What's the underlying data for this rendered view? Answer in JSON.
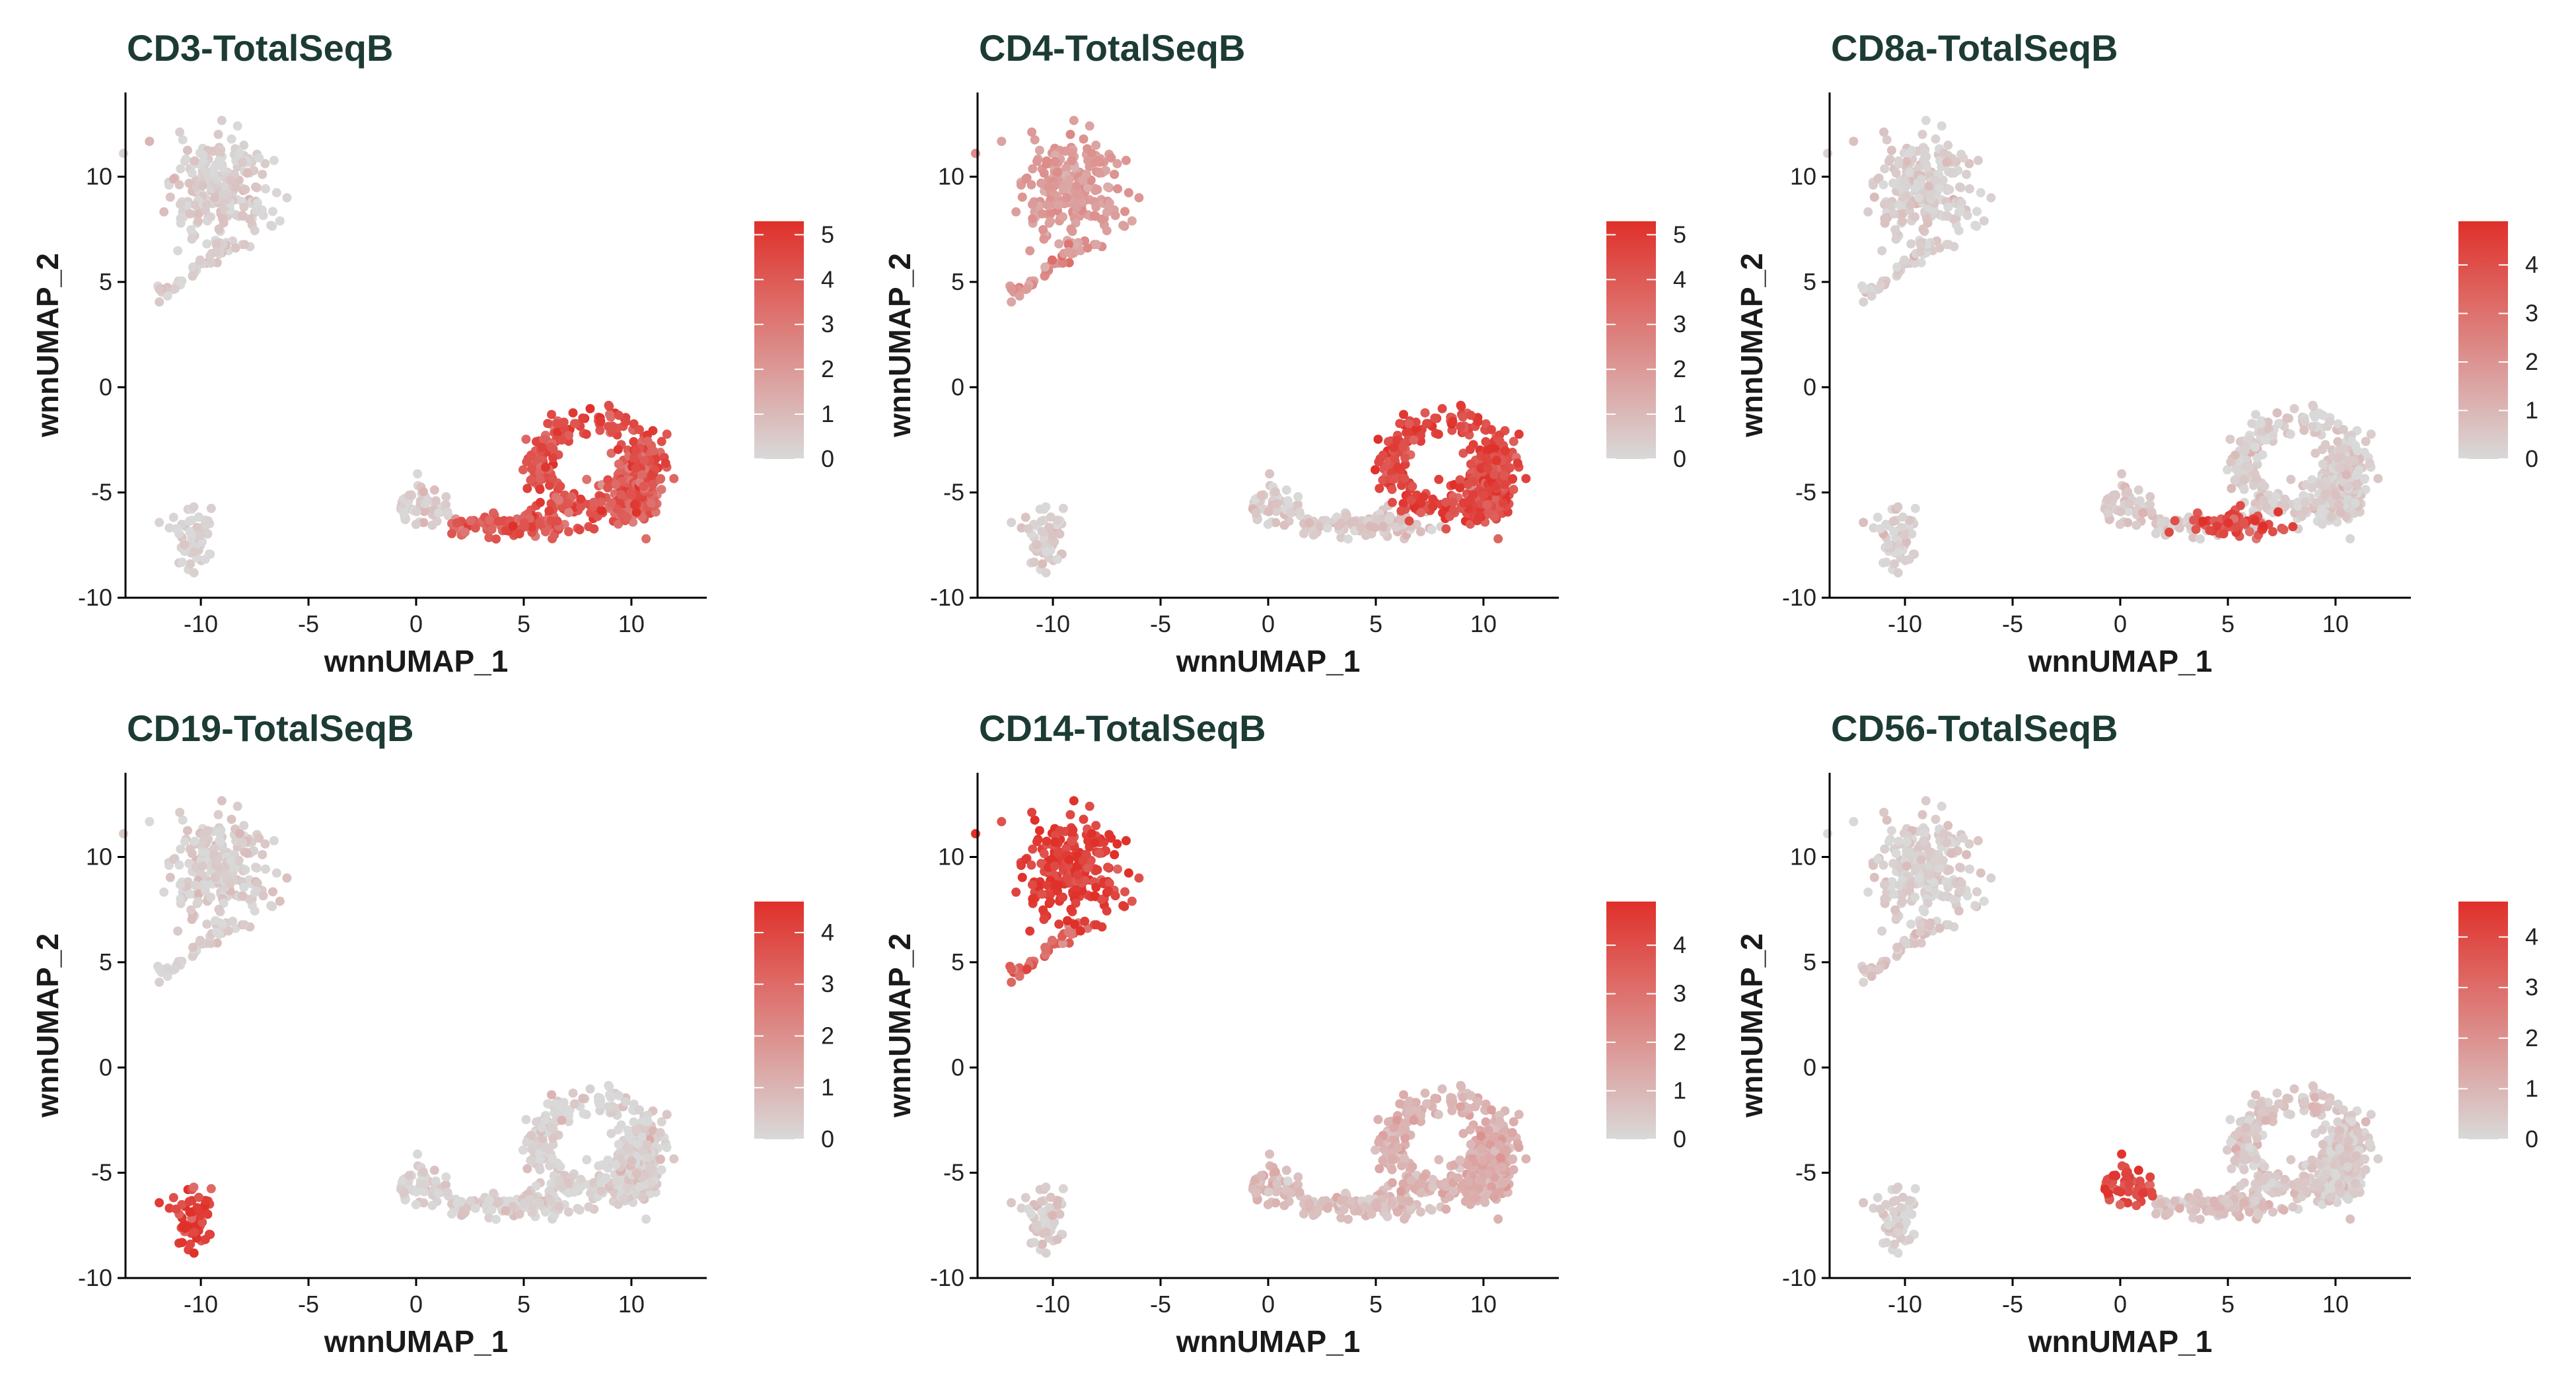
{
  "colors": {
    "low": "#d9d9d9",
    "high": "#e0302a",
    "title": "#1c3b34"
  },
  "chart_data": [
    {
      "type": "scatter",
      "title": "CD3-TotalSeqB",
      "xlabel": "wnnUMAP_1",
      "ylabel": "wnnUMAP_2",
      "xlim": [
        -13.5,
        13.5
      ],
      "ylim": [
        -10,
        14
      ],
      "xticks": [
        -10,
        -5,
        0,
        5,
        10
      ],
      "yticks": [
        -10,
        -5,
        0,
        5,
        10
      ],
      "legend": {
        "placement": "right",
        "max": 5.3,
        "ticks": [
          0,
          1,
          2,
          3,
          4,
          5
        ]
      },
      "clusters": [
        {
          "name": "mono",
          "level": 0.3
        },
        {
          "name": "tail",
          "level": 0.35
        },
        {
          "name": "b",
          "level": 0.15
        },
        {
          "name": "nk",
          "level": 0.3
        },
        {
          "name": "t_low",
          "level": 3.8
        },
        {
          "name": "t_ring",
          "level": 4.3
        },
        {
          "name": "t_core",
          "level": 3.6
        },
        {
          "name": "cd8",
          "level": 4.0
        }
      ]
    },
    {
      "type": "scatter",
      "title": "CD4-TotalSeqB",
      "xlabel": "wnnUMAP_1",
      "ylabel": "wnnUMAP_2",
      "xlim": [
        -13.5,
        13.5
      ],
      "ylim": [
        -10,
        14
      ],
      "xticks": [
        -10,
        -5,
        0,
        5,
        10
      ],
      "yticks": [
        -10,
        -5,
        0,
        5,
        10
      ],
      "legend": {
        "placement": "right",
        "max": 5.3,
        "ticks": [
          0,
          1,
          2,
          3,
          4,
          5
        ]
      },
      "clusters": [
        {
          "name": "mono",
          "level": 1.9
        },
        {
          "name": "tail",
          "level": 2.2
        },
        {
          "name": "b",
          "level": 0.3
        },
        {
          "name": "nk",
          "level": 0.4
        },
        {
          "name": "t_low",
          "level": 0.6
        },
        {
          "name": "t_ring",
          "level": 4.6
        },
        {
          "name": "t_core",
          "level": 4.3
        },
        {
          "name": "cd8",
          "level": 0.5
        }
      ]
    },
    {
      "type": "scatter",
      "title": "CD8a-TotalSeqB",
      "xlabel": "wnnUMAP_1",
      "ylabel": "wnnUMAP_2",
      "xlim": [
        -13.5,
        13.5
      ],
      "ylim": [
        -10,
        14
      ],
      "xticks": [
        -10,
        -5,
        0,
        5,
        10
      ],
      "yticks": [
        -10,
        -5,
        0,
        5,
        10
      ],
      "legend": {
        "placement": "right",
        "max": 4.9,
        "ticks": [
          0,
          1,
          2,
          3,
          4
        ]
      },
      "clusters": [
        {
          "name": "mono",
          "level": 0.3
        },
        {
          "name": "tail",
          "level": 0.3
        },
        {
          "name": "b",
          "level": 0.2
        },
        {
          "name": "nk",
          "level": 0.5
        },
        {
          "name": "t_low",
          "level": 0.4
        },
        {
          "name": "t_ring",
          "level": 0.3
        },
        {
          "name": "t_core",
          "level": 0.2
        },
        {
          "name": "cd8",
          "level": 4.1
        }
      ]
    },
    {
      "type": "scatter",
      "title": "CD19-TotalSeqB",
      "xlabel": "wnnUMAP_1",
      "ylabel": "wnnUMAP_2",
      "xlim": [
        -13.5,
        13.5
      ],
      "ylim": [
        -10,
        14
      ],
      "xticks": [
        -10,
        -5,
        0,
        5,
        10
      ],
      "yticks": [
        -10,
        -5,
        0,
        5,
        10
      ],
      "legend": {
        "placement": "right",
        "max": 4.6,
        "ticks": [
          0,
          1,
          2,
          3,
          4
        ]
      },
      "clusters": [
        {
          "name": "mono",
          "level": 0.3
        },
        {
          "name": "tail",
          "level": 0.2
        },
        {
          "name": "b",
          "level": 4.2
        },
        {
          "name": "nk",
          "level": 0.2
        },
        {
          "name": "t_low",
          "level": 0.2
        },
        {
          "name": "t_ring",
          "level": 0.2
        },
        {
          "name": "t_core",
          "level": 0.2
        },
        {
          "name": "cd8",
          "level": 0.2
        }
      ]
    },
    {
      "type": "scatter",
      "title": "CD14-TotalSeqB",
      "xlabel": "wnnUMAP_1",
      "ylabel": "wnnUMAP_2",
      "xlim": [
        -13.5,
        13.5
      ],
      "ylim": [
        -10,
        14
      ],
      "xticks": [
        -10,
        -5,
        0,
        5,
        10
      ],
      "yticks": [
        -10,
        -5,
        0,
        5,
        10
      ],
      "legend": {
        "placement": "right",
        "max": 4.9,
        "ticks": [
          0,
          1,
          2,
          3,
          4
        ]
      },
      "clusters": [
        {
          "name": "mono",
          "level": 4.5
        },
        {
          "name": "tail",
          "level": 3.3
        },
        {
          "name": "b",
          "level": 0.4
        },
        {
          "name": "nk",
          "level": 0.9
        },
        {
          "name": "t_low",
          "level": 0.8
        },
        {
          "name": "t_ring",
          "level": 1.1
        },
        {
          "name": "t_core",
          "level": 1.3
        },
        {
          "name": "cd8",
          "level": 0.8
        }
      ]
    },
    {
      "type": "scatter",
      "title": "CD56-TotalSeqB",
      "xlabel": "wnnUMAP_1",
      "ylabel": "wnnUMAP_2",
      "xlim": [
        -13.5,
        13.5
      ],
      "ylim": [
        -10,
        14
      ],
      "xticks": [
        -10,
        -5,
        0,
        5,
        10
      ],
      "yticks": [
        -10,
        -5,
        0,
        5,
        10
      ],
      "legend": {
        "placement": "right",
        "max": 4.7,
        "ticks": [
          0,
          1,
          2,
          3,
          4
        ]
      },
      "clusters": [
        {
          "name": "mono",
          "level": 0.2
        },
        {
          "name": "tail",
          "level": 0.5
        },
        {
          "name": "b",
          "level": 0.2
        },
        {
          "name": "nk",
          "level": 3.8
        },
        {
          "name": "t_low",
          "level": 0.5
        },
        {
          "name": "t_ring",
          "level": 0.4
        },
        {
          "name": "t_core",
          "level": 0.3
        },
        {
          "name": "cd8",
          "level": 0.6
        }
      ]
    }
  ]
}
